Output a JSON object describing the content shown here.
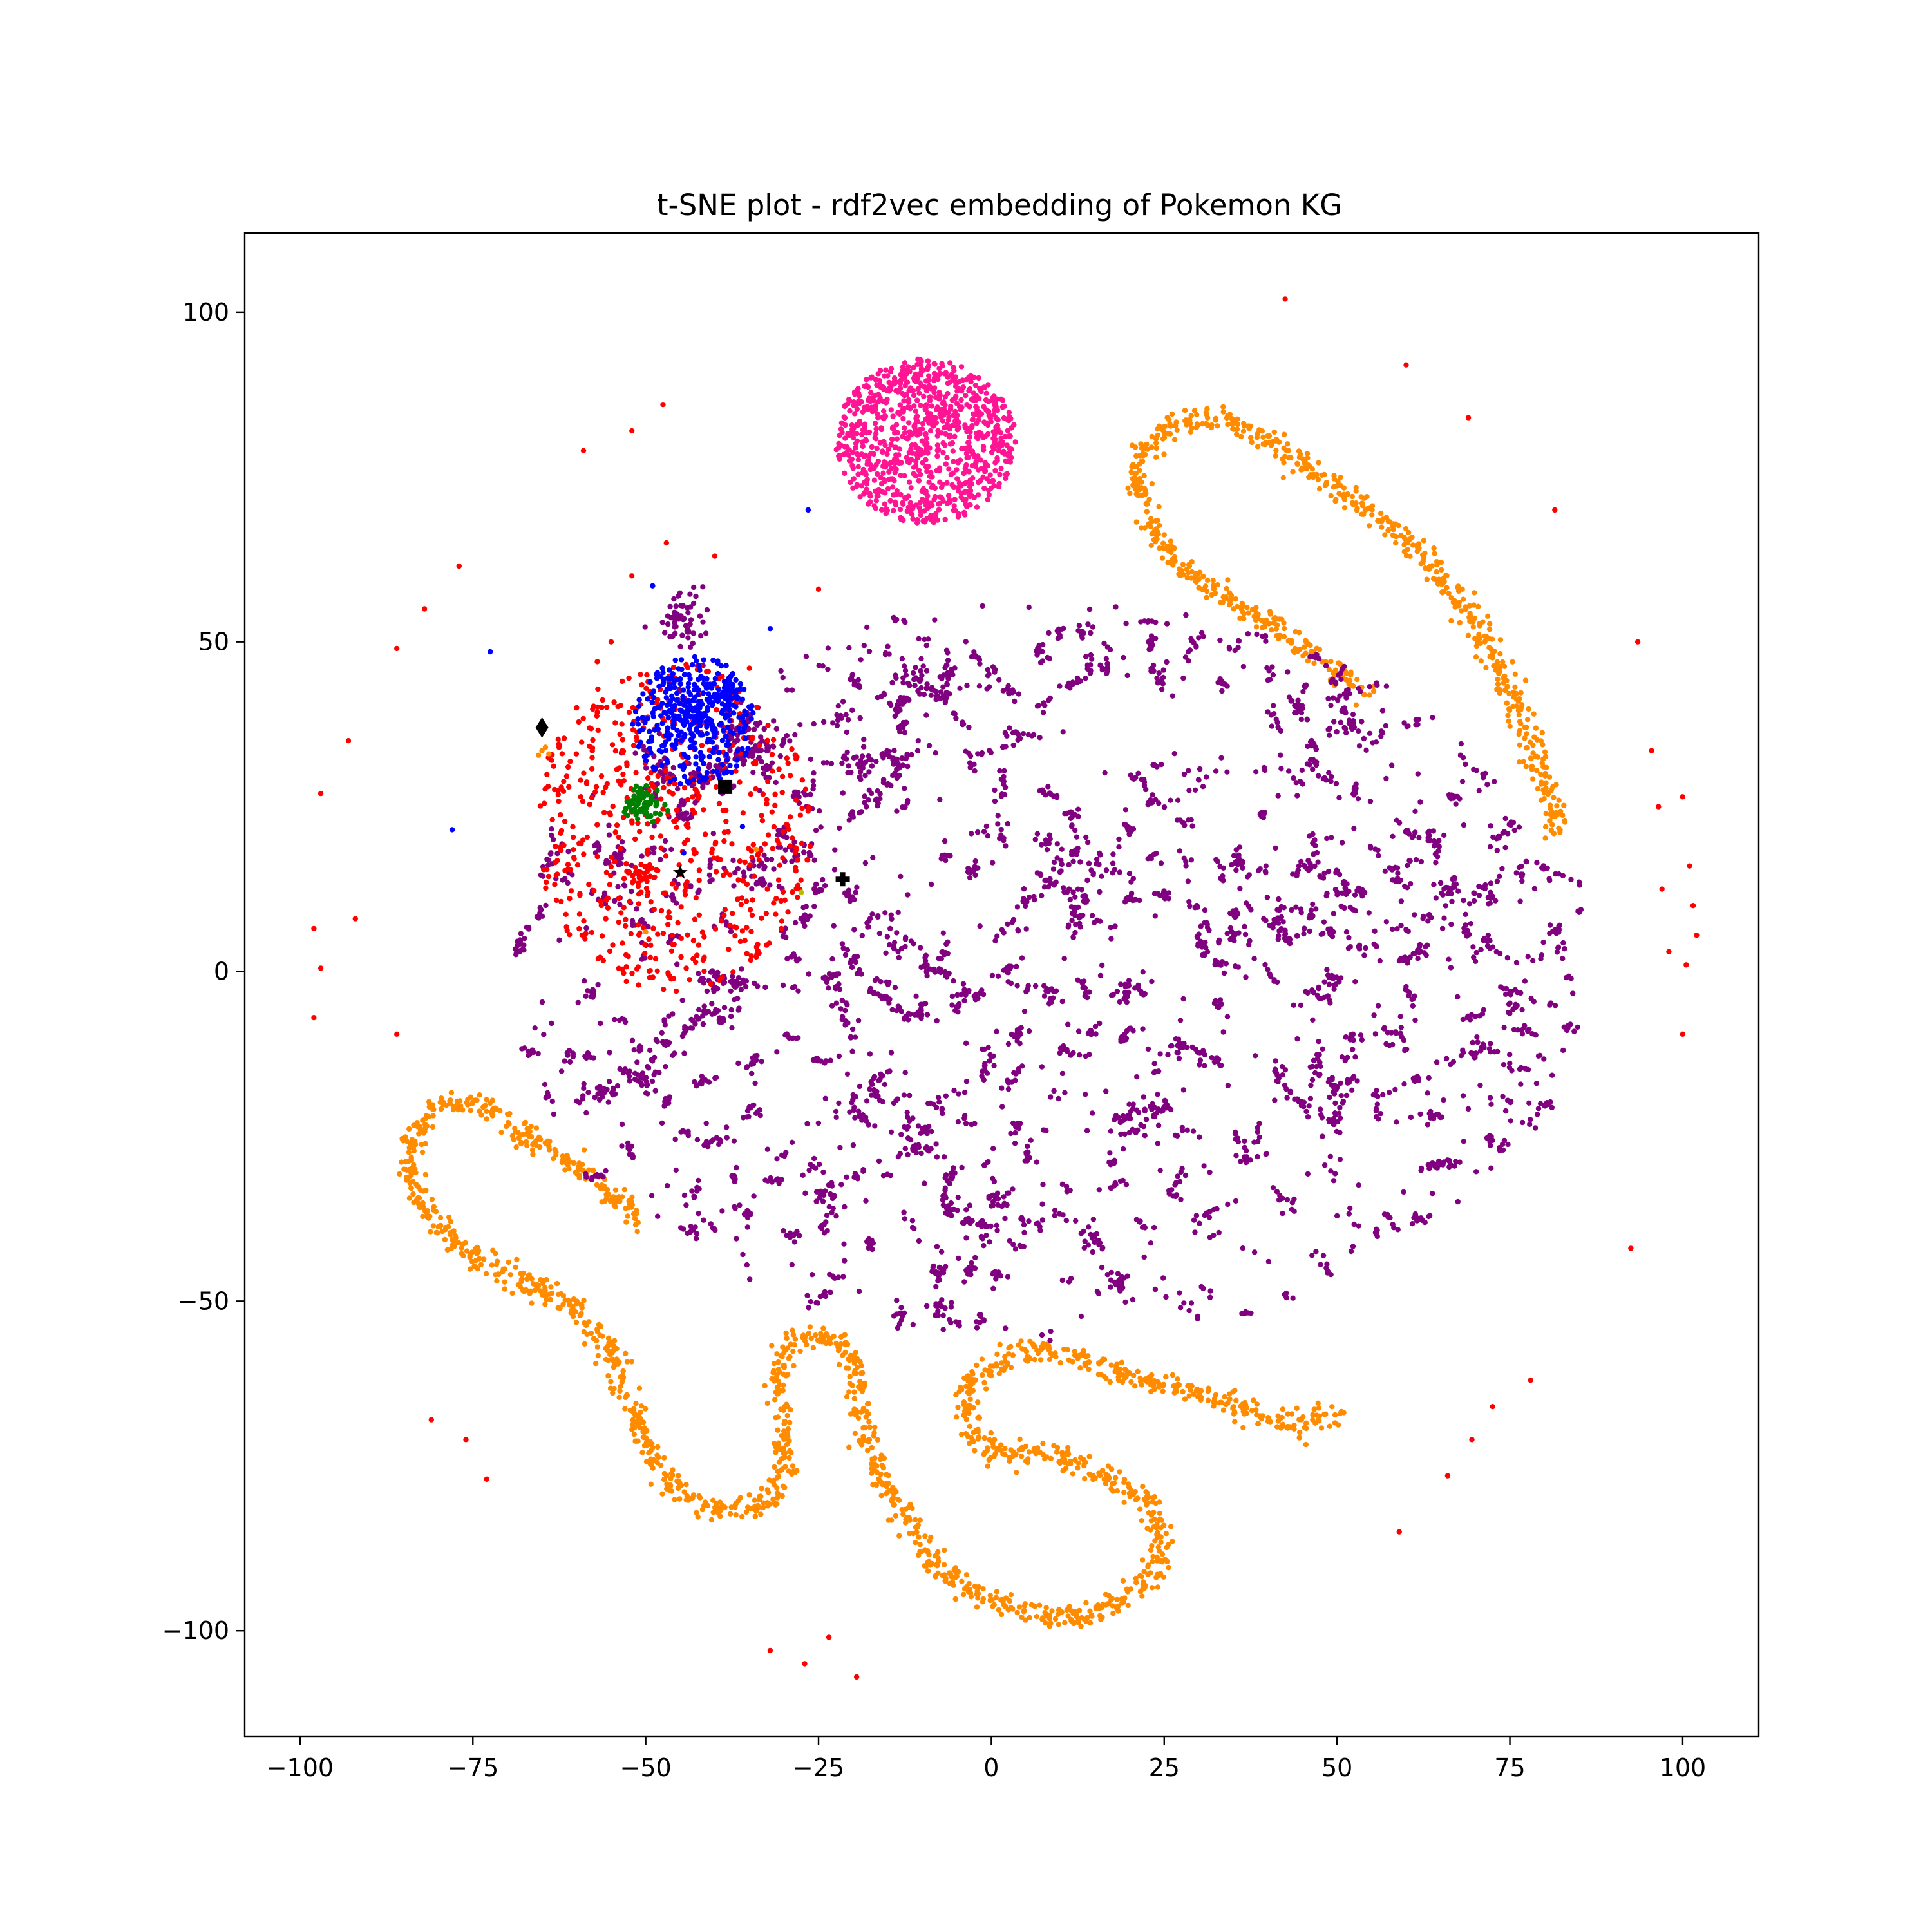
{
  "chart_data": {
    "type": "scatter",
    "title": "t-SNE plot - rdf2vec embedding of Pokemon KG",
    "xlabel": "",
    "ylabel": "",
    "xlim": [
      -108,
      111
    ],
    "ylim": [
      -116,
      112
    ],
    "xticks": [
      -100,
      -75,
      -50,
      -25,
      0,
      25,
      50,
      75,
      100
    ],
    "yticks": [
      100,
      50,
      0,
      -50,
      -100
    ],
    "xtick_labels": [
      "−100",
      "−75",
      "−50",
      "−25",
      "0",
      "25",
      "50",
      "75",
      "100"
    ],
    "ytick_labels": [
      "100",
      "50",
      "0",
      "−50",
      "−100"
    ],
    "grid": false,
    "legend": "none",
    "colors": {
      "orange": "#ff8c00",
      "pink": "#ff1493",
      "purple": "#800080",
      "red": "#ff0000",
      "blue": "#0000ff",
      "green": "#008000",
      "black": "#000000",
      "yellow": "#bbbb00"
    },
    "series": [
      {
        "color": "#ff8c00",
        "kind": "curve-band",
        "spread": 0.9,
        "curves": [
          [
            [
              21,
              76
            ],
            [
              22,
              70
            ],
            [
              24,
              65
            ],
            [
              28,
              61
            ],
            [
              32,
              58
            ],
            [
              36,
              55
            ],
            [
              40,
              53
            ],
            [
              44,
              50
            ],
            [
              48,
              47
            ],
            [
              51,
              45
            ],
            [
              54,
              42
            ]
          ],
          [
            [
              21,
              76
            ],
            [
              23,
              80
            ],
            [
              26,
              83
            ],
            [
              29,
              84
            ],
            [
              33,
              83.5
            ],
            [
              37,
              82
            ],
            [
              41,
              80
            ],
            [
              45,
              77
            ],
            [
              49,
              74
            ],
            [
              53,
              71
            ],
            [
              57,
              68
            ],
            [
              61,
              65
            ],
            [
              64,
              61
            ],
            [
              67,
              57
            ],
            [
              70,
              53
            ],
            [
              73,
              47
            ],
            [
              76,
              41
            ],
            [
              78,
              35
            ],
            [
              80,
              29
            ],
            [
              81,
              25
            ],
            [
              82,
              21
            ]
          ],
          [
            [
              -51,
              -38
            ],
            [
              -54,
              -35
            ],
            [
              -57,
              -32
            ],
            [
              -61,
              -29
            ],
            [
              -64,
              -27
            ],
            [
              -67,
              -25
            ],
            [
              -71,
              -22
            ],
            [
              -75,
              -20
            ],
            [
              -78,
              -20
            ],
            [
              -81,
              -21
            ],
            [
              -84,
              -26
            ],
            [
              -84,
              -31
            ],
            [
              -82,
              -36
            ],
            [
              -79,
              -40
            ],
            [
              -75,
              -43
            ],
            [
              -71,
              -46
            ],
            [
              -66,
              -48
            ],
            [
              -61,
              -50
            ],
            [
              -58,
              -54
            ],
            [
              -55,
              -57
            ],
            [
              -54,
              -61
            ],
            [
              -53,
              -64
            ],
            [
              -51,
              -69
            ],
            [
              -49,
              -73
            ],
            [
              -47,
              -77
            ],
            [
              -44,
              -80
            ],
            [
              -40,
              -81.5
            ],
            [
              -36,
              -81.5
            ],
            [
              -32,
              -80.5
            ],
            [
              -30,
              -77
            ],
            [
              -30,
              -72
            ],
            [
              -30,
              -67
            ],
            [
              -31,
              -62
            ],
            [
              -30,
              -58
            ],
            [
              -28,
              -56
            ],
            [
              -25,
              -55
            ],
            [
              -22,
              -56
            ],
            [
              -20,
              -60
            ],
            [
              -19,
              -66
            ],
            [
              -18,
              -72
            ],
            [
              -16,
              -77
            ],
            [
              -13,
              -82
            ],
            [
              -10,
              -87
            ],
            [
              -7,
              -91
            ],
            [
              -3,
              -94
            ],
            [
              1,
              -96
            ],
            [
              5,
              -97
            ],
            [
              9,
              -98
            ],
            [
              13,
              -98
            ],
            [
              17,
              -96
            ],
            [
              21,
              -94
            ],
            [
              24,
              -90
            ],
            [
              24,
              -84
            ],
            [
              22,
              -80
            ],
            [
              19,
              -78
            ],
            [
              15,
              -76
            ],
            [
              11,
              -74
            ],
            [
              7,
              -73
            ],
            [
              3,
              -73
            ],
            [
              -1,
              -72
            ],
            [
              -3,
              -69
            ],
            [
              -4,
              -64
            ],
            [
              -2,
              -61
            ],
            [
              2,
              -59
            ],
            [
              6,
              -57
            ],
            [
              11,
              -58
            ],
            [
              16,
              -60
            ],
            [
              21,
              -62
            ],
            [
              26,
              -63
            ],
            [
              31,
              -64
            ],
            [
              36,
              -66
            ],
            [
              40,
              -68
            ],
            [
              44,
              -69
            ],
            [
              47,
              -68
            ],
            [
              50,
              -67
            ]
          ]
        ]
      },
      {
        "color": "#ff1493",
        "kind": "ellipse-cloud",
        "center": [
          -9.5,
          80.5
        ],
        "radius": [
          13,
          12.5
        ],
        "count": 900
      },
      {
        "color": "#800080",
        "kind": "cluster-field",
        "center": [
          8,
          0
        ],
        "radius": [
          78,
          56
        ],
        "clusters": 480,
        "scatter": 500
      },
      {
        "color": "#800080",
        "kind": "blobs",
        "blobs": [
          [
            -45,
            53,
            2.2,
            60
          ],
          [
            -36,
            35,
            2.5,
            70
          ],
          [
            -10.5,
            44.5,
            1.6,
            40
          ],
          [
            -50,
            -16,
            1.3,
            25
          ]
        ]
      },
      {
        "color": "#ff0000",
        "kind": "cloud",
        "center": [
          -46,
          22
        ],
        "radius": [
          20,
          25
        ],
        "count": 600
      },
      {
        "color": "#ff0000",
        "kind": "blob",
        "center": [
          -50.5,
          14.5
        ],
        "radius": 1.2,
        "count": 25
      },
      {
        "color": "#ff0000",
        "kind": "points",
        "points": [
          [
            42.5,
            102
          ],
          [
            60,
            92
          ],
          [
            69,
            84
          ],
          [
            81.5,
            70
          ],
          [
            -47.5,
            86
          ],
          [
            -52,
            82
          ],
          [
            -59,
            79
          ],
          [
            -77,
            61.5
          ],
          [
            -82,
            55
          ],
          [
            -86,
            49
          ],
          [
            -93,
            35
          ],
          [
            -97,
            27
          ],
          [
            -92,
            8
          ],
          [
            -98,
            6.5
          ],
          [
            -97,
            0.5
          ],
          [
            -98,
            -7
          ],
          [
            -86,
            -9.5
          ],
          [
            -81,
            -68
          ],
          [
            -76,
            -71
          ],
          [
            -73,
            -77
          ],
          [
            -32,
            -103
          ],
          [
            -23.5,
            -101
          ],
          [
            -27,
            -105
          ],
          [
            -19.5,
            -107
          ],
          [
            59,
            -85
          ],
          [
            66,
            -76.5
          ],
          [
            69.5,
            -71
          ],
          [
            72.5,
            -66
          ],
          [
            78,
            -62
          ],
          [
            92.5,
            -42
          ],
          [
            93.5,
            50
          ],
          [
            95.5,
            33.5
          ],
          [
            97,
            12.5
          ],
          [
            101,
            16
          ],
          [
            96.5,
            25
          ],
          [
            100,
            26.5
          ],
          [
            101.5,
            10
          ],
          [
            102,
            5.5
          ],
          [
            98,
            3
          ],
          [
            100.5,
            1
          ],
          [
            100,
            -9.5
          ],
          [
            -60,
            40
          ],
          [
            -57,
            47
          ],
          [
            -55,
            50
          ],
          [
            -47,
            65
          ],
          [
            -40,
            63
          ],
          [
            -52,
            60
          ],
          [
            -35,
            46
          ],
          [
            -25,
            58
          ]
        ]
      },
      {
        "color": "#0000ff",
        "kind": "cloud",
        "center": [
          -43,
          38
        ],
        "radius": [
          9,
          10
        ],
        "count": 320
      },
      {
        "color": "#0000ff",
        "kind": "blobs",
        "blobs": [
          [
            -43,
            39,
            1.6,
            60
          ],
          [
            -39,
            42,
            1.3,
            40
          ]
        ]
      },
      {
        "color": "#0000ff",
        "kind": "points",
        "points": [
          [
            -26.5,
            70
          ],
          [
            -72.5,
            48.5
          ],
          [
            -78,
            21.5
          ],
          [
            -49,
            58.5
          ],
          [
            -32,
            52
          ],
          [
            -36,
            22
          ],
          [
            -44.5,
            18
          ]
        ]
      },
      {
        "color": "#008000",
        "kind": "blob",
        "center": [
          -50.5,
          25.5
        ],
        "radius": 1.3,
        "count": 70
      },
      {
        "color": "#ff8c00",
        "kind": "points",
        "points": [
          [
            -65,
            33.5
          ],
          [
            -64.5,
            34
          ],
          [
            -65.5,
            32.8
          ],
          [
            -64,
            33
          ],
          [
            -34,
            18.5
          ],
          [
            -50,
            6
          ]
        ]
      },
      {
        "color": "#bbbb00",
        "kind": "points",
        "points": [
          [
            -27.5,
            12
          ]
        ]
      }
    ],
    "markers": [
      {
        "shape": "diamond",
        "color": "#000000",
        "x": -65,
        "y": 37
      },
      {
        "shape": "square",
        "color": "#000000",
        "x": -38.5,
        "y": 28
      },
      {
        "shape": "star",
        "color": "#000000",
        "x": -45,
        "y": 15
      },
      {
        "shape": "plus",
        "color": "#000000",
        "x": -21.5,
        "y": 14
      }
    ]
  }
}
